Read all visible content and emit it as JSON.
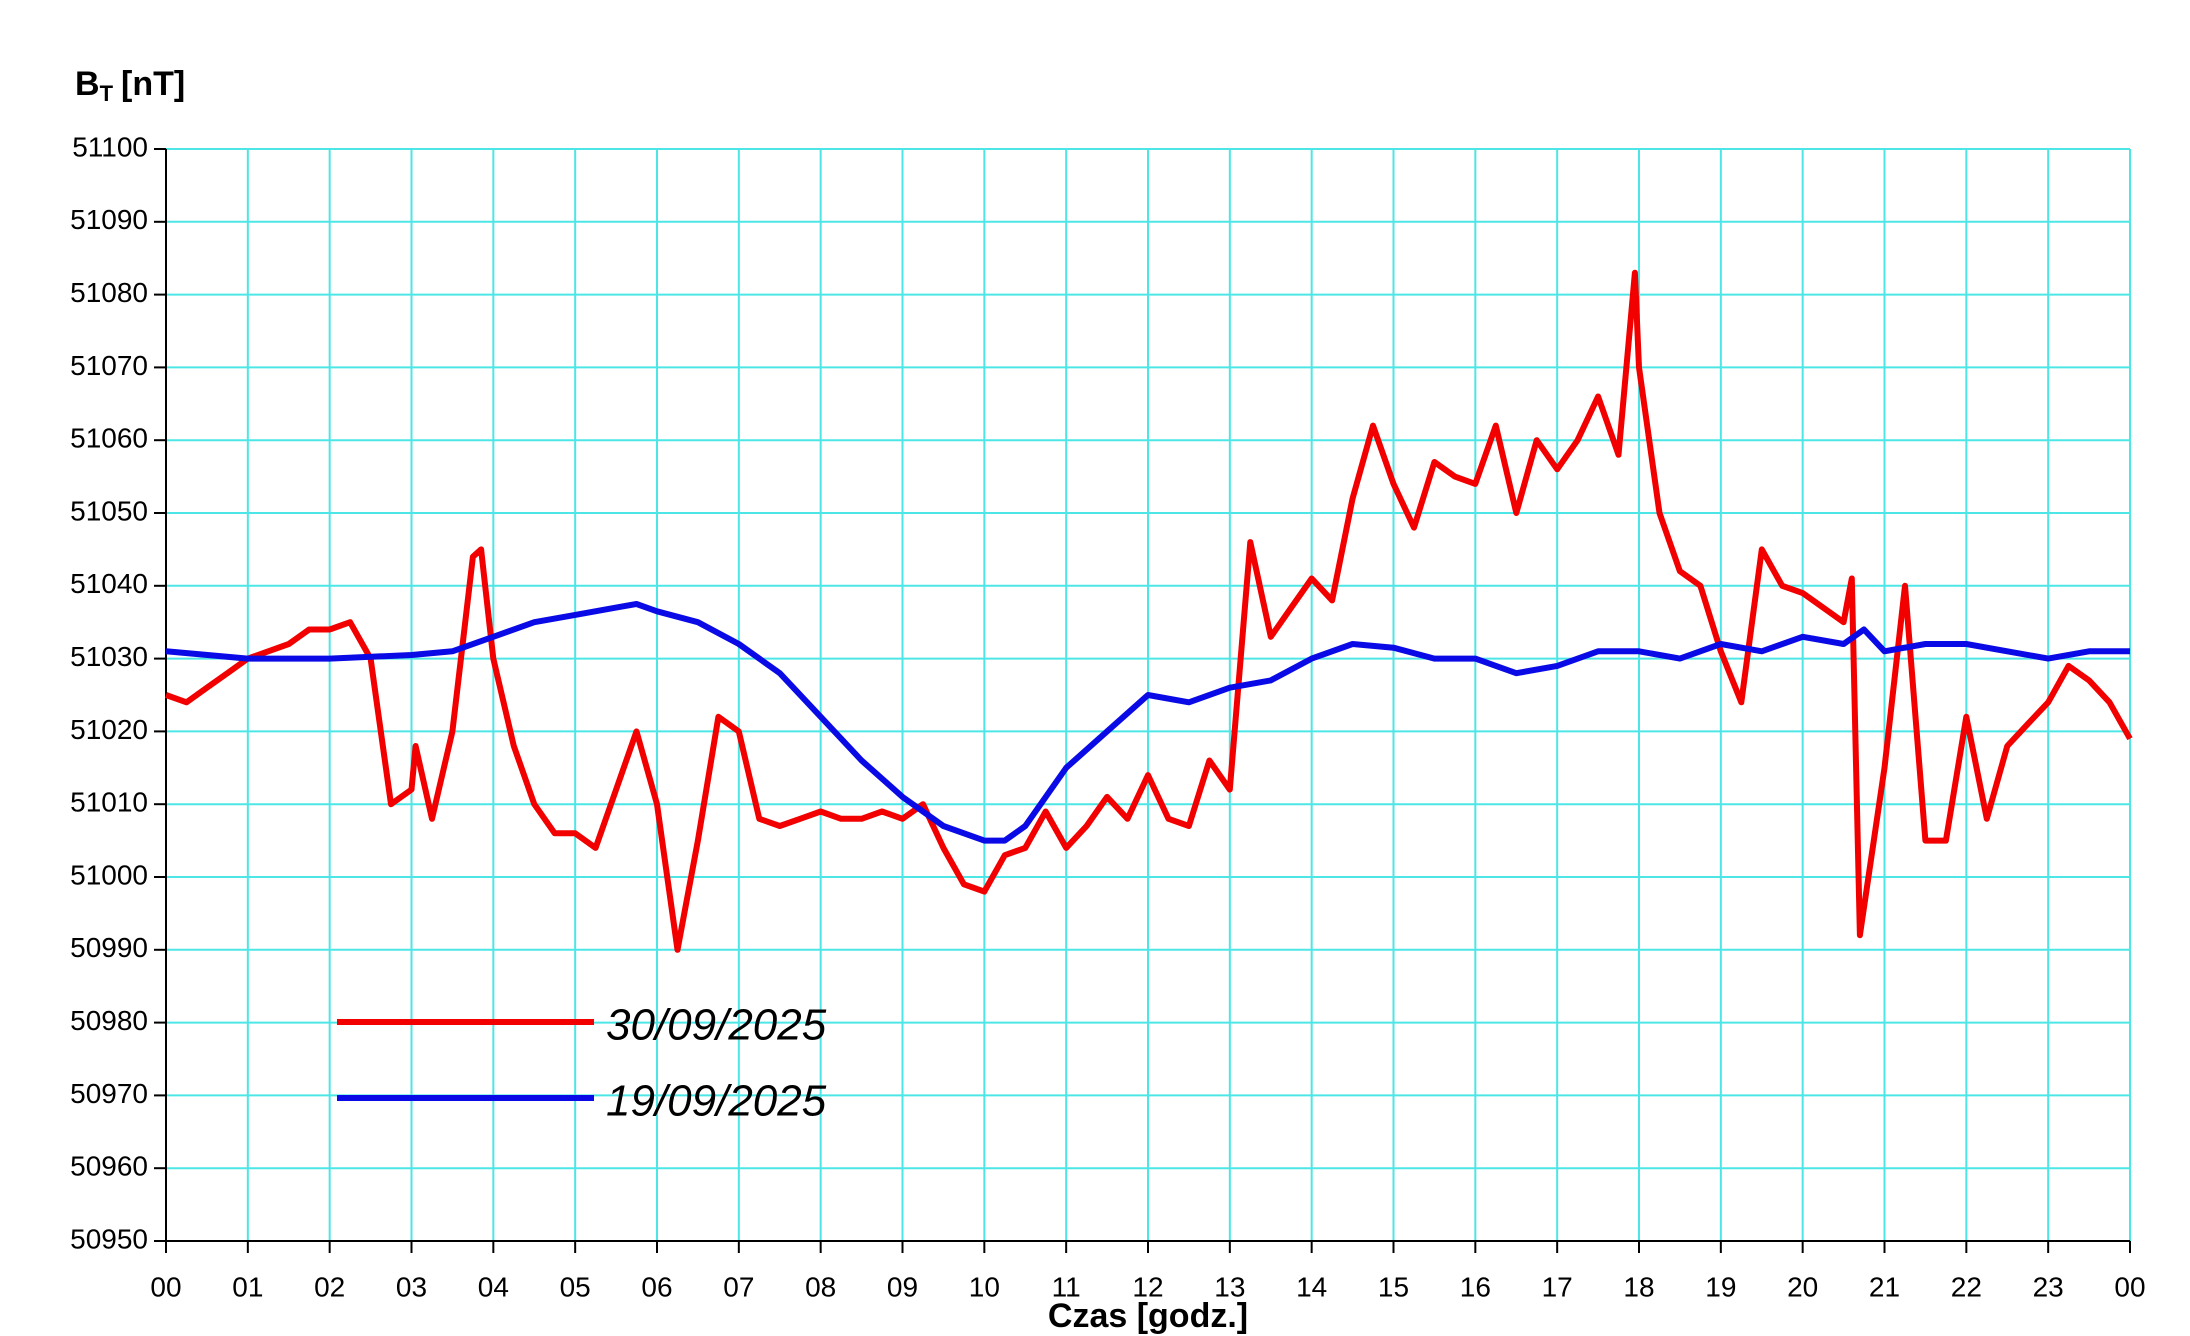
{
  "chart_data": {
    "type": "line",
    "y_label": {
      "base": "B",
      "subscript": "T",
      "unit": "[nT]"
    },
    "x_label": "Czas [godz.]",
    "xlim": [
      0,
      24
    ],
    "xticks": [
      {
        "value": 0,
        "label": "00"
      },
      {
        "value": 1,
        "label": "01"
      },
      {
        "value": 2,
        "label": "02"
      },
      {
        "value": 3,
        "label": "03"
      },
      {
        "value": 4,
        "label": "04"
      },
      {
        "value": 5,
        "label": "05"
      },
      {
        "value": 6,
        "label": "06"
      },
      {
        "value": 7,
        "label": "07"
      },
      {
        "value": 8,
        "label": "08"
      },
      {
        "value": 9,
        "label": "09"
      },
      {
        "value": 10,
        "label": "10"
      },
      {
        "value": 11,
        "label": "11"
      },
      {
        "value": 12,
        "label": "12"
      },
      {
        "value": 13,
        "label": "13"
      },
      {
        "value": 14,
        "label": "14"
      },
      {
        "value": 15,
        "label": "15"
      },
      {
        "value": 16,
        "label": "16"
      },
      {
        "value": 17,
        "label": "17"
      },
      {
        "value": 18,
        "label": "18"
      },
      {
        "value": 19,
        "label": "19"
      },
      {
        "value": 20,
        "label": "20"
      },
      {
        "value": 21,
        "label": "21"
      },
      {
        "value": 22,
        "label": "22"
      },
      {
        "value": 23,
        "label": "23"
      },
      {
        "value": 24,
        "label": "00"
      }
    ],
    "ylim": [
      50950,
      51100
    ],
    "yticks": [
      50950,
      50960,
      50970,
      50980,
      50990,
      51000,
      51010,
      51020,
      51030,
      51040,
      51050,
      51060,
      51070,
      51080,
      51090,
      51100
    ],
    "grid": true,
    "grid_color": "#4de6e6",
    "legend": "lower left",
    "series": [
      {
        "name": "30/09/2025",
        "color": "#f20000",
        "x": [
          0,
          0.25,
          0.5,
          0.75,
          1,
          1.25,
          1.5,
          1.75,
          2,
          2.25,
          2.5,
          2.75,
          3,
          3.05,
          3.25,
          3.5,
          3.75,
          3.85,
          4,
          4.25,
          4.5,
          4.75,
          5,
          5.25,
          5.5,
          5.75,
          6,
          6.25,
          6.5,
          6.75,
          7,
          7.25,
          7.5,
          7.75,
          8,
          8.25,
          8.5,
          8.75,
          9,
          9.25,
          9.5,
          9.75,
          10,
          10.25,
          10.5,
          10.75,
          11,
          11.25,
          11.5,
          11.75,
          12,
          12.25,
          12.5,
          12.75,
          13,
          13.25,
          13.5,
          13.75,
          14,
          14.25,
          14.5,
          14.75,
          15,
          15.25,
          15.5,
          15.75,
          16,
          16.25,
          16.5,
          16.75,
          17,
          17.25,
          17.5,
          17.75,
          17.95,
          18,
          18.25,
          18.5,
          18.75,
          19,
          19.25,
          19.5,
          19.75,
          20,
          20.25,
          20.5,
          20.6,
          20.7,
          21,
          21.25,
          21.5,
          21.75,
          22,
          22.25,
          22.5,
          22.75,
          23,
          23.25,
          23.5,
          23.75,
          24
        ],
        "values": [
          51025,
          51024,
          51026,
          51028,
          51030,
          51031,
          51032,
          51034,
          51034,
          51035,
          51030,
          51010,
          51012,
          51018,
          51008,
          51020,
          51044,
          51045,
          51030,
          51018,
          51010,
          51006,
          51006,
          51004,
          51012,
          51020,
          51010,
          50990,
          51005,
          51022,
          51020,
          51008,
          51007,
          51008,
          51009,
          51008,
          51008,
          51009,
          51008,
          51010,
          51004,
          50999,
          50998,
          51003,
          51004,
          51009,
          51004,
          51007,
          51011,
          51008,
          51014,
          51008,
          51007,
          51016,
          51012,
          51046,
          51033,
          51037,
          51041,
          51038,
          51052,
          51062,
          51054,
          51048,
          51057,
          51055,
          51054,
          51062,
          51050,
          51060,
          51056,
          51060,
          51066,
          51058,
          51083,
          51070,
          51050,
          51042,
          51040,
          51031,
          51024,
          51045,
          51040,
          51039,
          51037,
          51035,
          51041,
          50992,
          51015,
          51040,
          51005,
          51005,
          51022,
          51008,
          51018,
          51021,
          51024,
          51029,
          51027,
          51024,
          51019
        ]
      },
      {
        "name": "19/09/2025",
        "color": "#0a0ae6",
        "x": [
          0,
          1,
          2,
          3,
          3.5,
          4,
          4.5,
          5,
          5.5,
          5.75,
          6,
          6.5,
          7,
          7.5,
          8,
          8.5,
          9,
          9.5,
          10,
          10.25,
          10.5,
          11,
          11.5,
          12,
          12.5,
          13,
          13.5,
          14,
          14.5,
          15,
          15.5,
          16,
          16.5,
          17,
          17.5,
          18,
          18.5,
          19,
          19.5,
          20,
          20.5,
          20.75,
          21,
          21.5,
          22,
          22.5,
          23,
          23.5,
          24
        ],
        "values": [
          51031,
          51030,
          51030,
          51030.5,
          51031,
          51033,
          51035,
          51036,
          51037,
          51037.5,
          51036.5,
          51035,
          51032,
          51028,
          51022,
          51016,
          51011,
          51007,
          51005,
          51005,
          51007,
          51015,
          51020,
          51025,
          51024,
          51026,
          51027,
          51030,
          51032,
          51031.5,
          51030,
          51030,
          51028,
          51029,
          51031,
          51031,
          51030,
          51032,
          51031,
          51033,
          51032,
          51034,
          51031,
          51032,
          51032,
          51031,
          51030,
          51031,
          51031
        ]
      }
    ]
  }
}
